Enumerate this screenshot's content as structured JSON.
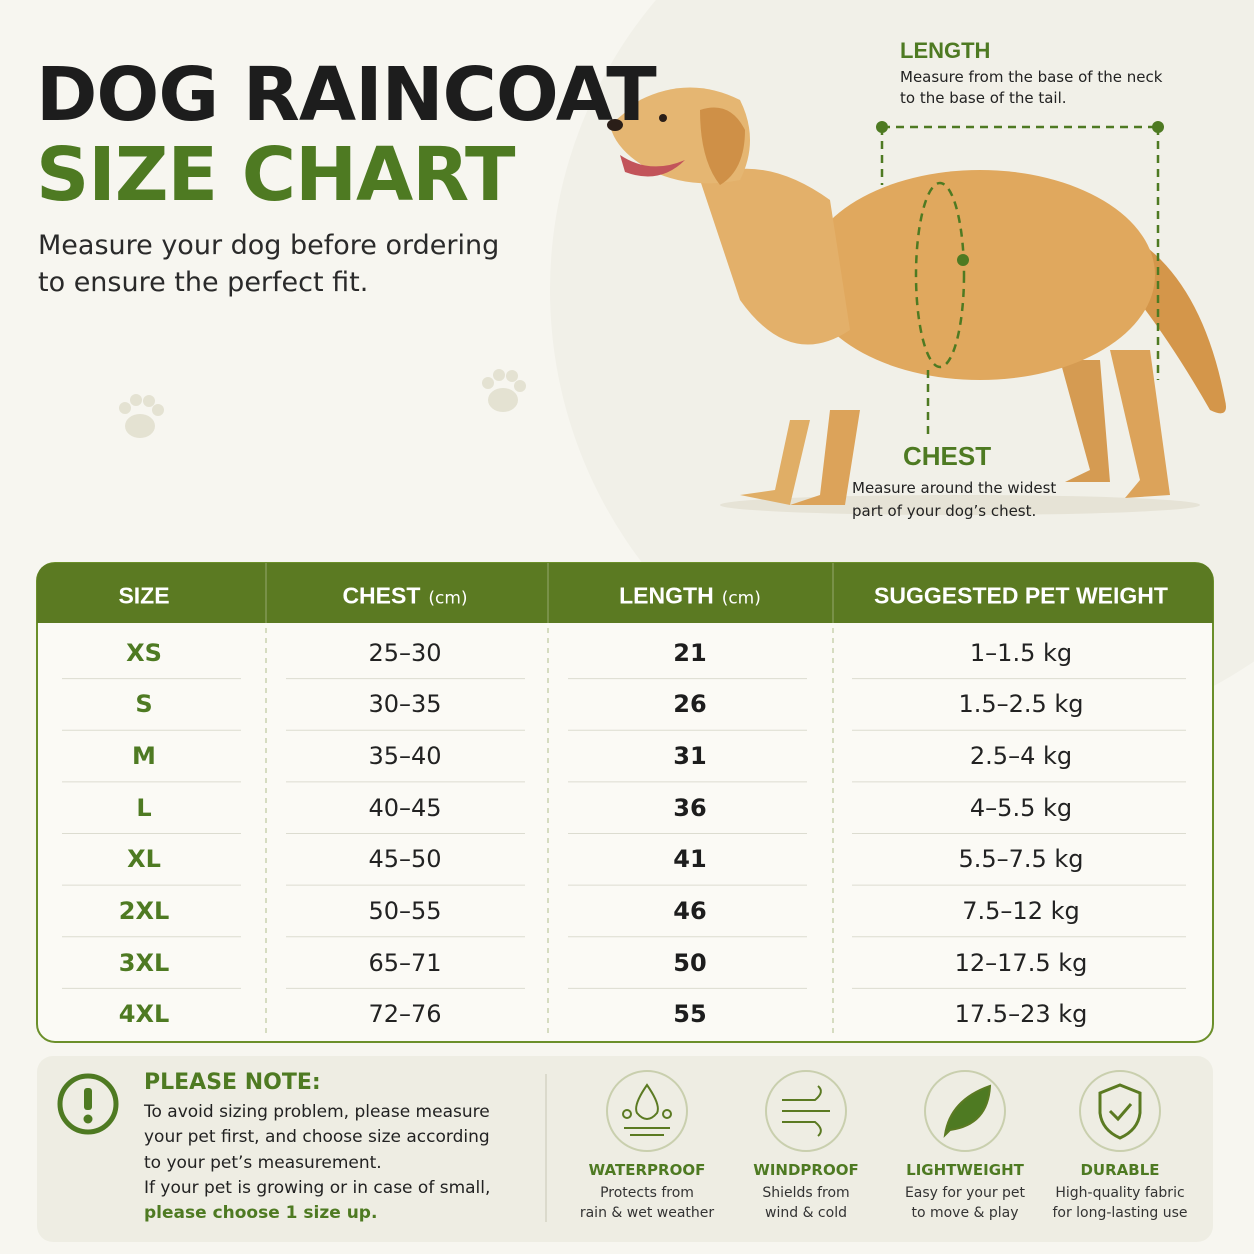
{
  "header": {
    "title_line1": "DOG RAINCOAT",
    "title_line2": "SIZE CHART",
    "subtitle": [
      "Measure your dog before ordering",
      "to ensure the perfect fit."
    ]
  },
  "measurements": {
    "length": {
      "label": "LENGTH",
      "description": [
        "Measure from the base of the neck",
        "to the base of the tail."
      ]
    },
    "chest": {
      "label": "CHEST",
      "description": [
        "Measure around the widest",
        "part of your dog’s chest."
      ]
    }
  },
  "table": {
    "columns": [
      {
        "name": "SIZE"
      },
      {
        "name": "CHEST",
        "unit": "(cm)"
      },
      {
        "name": "LENGTH",
        "unit": "(cm)"
      },
      {
        "name": "SUGGESTED PET WEIGHT"
      }
    ],
    "rows": [
      [
        "XS",
        "25–30",
        "21",
        "1–1.5 kg"
      ],
      [
        "S",
        "30–35",
        "26",
        "1.5–2.5 kg"
      ],
      [
        "M",
        "35–40",
        "31",
        "2.5–4 kg"
      ],
      [
        "L",
        "40–45",
        "36",
        "4–5.5 kg"
      ],
      [
        "XL",
        "45–50",
        "41",
        "5.5–7.5 kg"
      ],
      [
        "2XL",
        "50–55",
        "46",
        "7.5–12 kg"
      ],
      [
        "3XL",
        "65–71",
        "50",
        "12–17.5 kg"
      ],
      [
        "4XL",
        "72–76",
        "55",
        "17.5–23 kg"
      ]
    ]
  },
  "note": {
    "title": "PLEASE NOTE:",
    "lines": [
      "To avoid sizing problem, please measure",
      "your pet first, and choose size according",
      "to your pet’s measurement.",
      "If your pet is growing or in case of small,"
    ],
    "emphasis": "please choose 1 size up."
  },
  "features": [
    {
      "name": "WATERPROOF",
      "description": [
        "Protects from",
        "rain & wet weather"
      ]
    },
    {
      "name": "WINDPROOF",
      "description": [
        "Shields from",
        "wind & cold"
      ]
    },
    {
      "name": "LIGHTWEIGHT",
      "description": [
        "Easy for your pet",
        "to move & play"
      ]
    },
    {
      "name": "DURABLE",
      "description": [
        "High-quality fabric",
        "for long-lasting use"
      ]
    }
  ]
}
